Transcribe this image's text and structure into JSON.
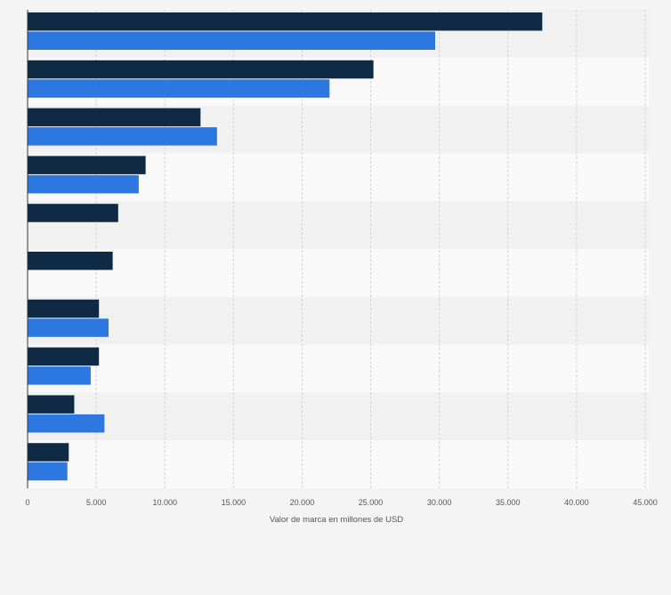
{
  "chart_data": {
    "type": "bar",
    "orientation": "horizontal",
    "title": "",
    "xlabel": "Valor de marca en millones de USD",
    "ylabel": "",
    "xlim": [
      0,
      45000
    ],
    "x_ticks": [
      0,
      5000,
      10000,
      15000,
      20000,
      25000,
      30000,
      35000,
      40000,
      45000
    ],
    "x_tick_labels": [
      "0",
      "5.000",
      "10.000",
      "15.000",
      "20.000",
      "25.000",
      "30.000",
      "35.000",
      "40.000",
      "45.000"
    ],
    "grid": true,
    "legend": "none",
    "categories": [
      "",
      "",
      "",
      "",
      "",
      "",
      "",
      "",
      "",
      ""
    ],
    "series": [
      {
        "color": "#0f2a44",
        "values": [
          37500,
          25200,
          12600,
          8600,
          6600,
          6200,
          5200,
          5200,
          3400,
          3000
        ]
      },
      {
        "color": "#2c78e0",
        "values": [
          29700,
          22000,
          13800,
          8100,
          null,
          null,
          5900,
          4600,
          5600,
          2900
        ]
      }
    ]
  }
}
